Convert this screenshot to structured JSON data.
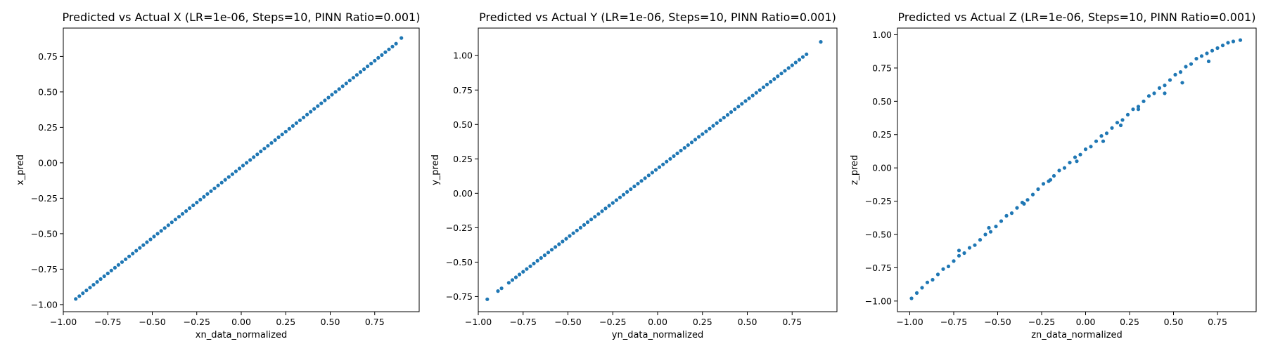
{
  "chart_data": [
    {
      "type": "scatter",
      "title": "Predicted vs Actual X (LR=1e-06, Steps=10, PINN Ratio=0.001)",
      "xlabel": "xn_data_normalized",
      "ylabel": "x_pred",
      "xlim": [
        -1.0,
        1.0
      ],
      "ylim": [
        -1.05,
        0.95
      ],
      "xticks": [
        -1.0,
        -0.75,
        -0.5,
        -0.25,
        0.0,
        0.25,
        0.5,
        0.75
      ],
      "yticks": [
        -1.0,
        -0.75,
        -0.5,
        -0.25,
        0.0,
        0.25,
        0.5,
        0.75
      ],
      "xtick_labels": [
        "−1.00",
        "−0.75",
        "−0.50",
        "−0.25",
        "0.00",
        "0.25",
        "0.50",
        "0.75"
      ],
      "ytick_labels": [
        "−1.00",
        "−0.75",
        "−0.50",
        "−0.25",
        "0.00",
        "0.25",
        "0.50",
        "0.75"
      ],
      "color": "#1f77b4",
      "grid": false,
      "series": [
        {
          "x": [
            -0.93,
            -0.91,
            -0.89,
            -0.87,
            -0.85,
            -0.83,
            -0.81,
            -0.79,
            -0.77,
            -0.75,
            -0.73,
            -0.71,
            -0.69,
            -0.67,
            -0.65,
            -0.63,
            -0.61,
            -0.59,
            -0.57,
            -0.55,
            -0.53,
            -0.51,
            -0.49,
            -0.47,
            -0.45,
            -0.43,
            -0.41,
            -0.39,
            -0.37,
            -0.35,
            -0.33,
            -0.31,
            -0.29,
            -0.27,
            -0.25,
            -0.23,
            -0.21,
            -0.19,
            -0.17,
            -0.15,
            -0.13,
            -0.11,
            -0.09,
            -0.07,
            -0.05,
            -0.03,
            -0.01,
            0.01,
            0.03,
            0.05,
            0.07,
            0.09,
            0.11,
            0.13,
            0.15,
            0.17,
            0.19,
            0.21,
            0.23,
            0.25,
            0.27,
            0.29,
            0.31,
            0.33,
            0.35,
            0.37,
            0.39,
            0.41,
            0.43,
            0.45,
            0.47,
            0.49,
            0.51,
            0.53,
            0.55,
            0.57,
            0.59,
            0.61,
            0.63,
            0.65,
            0.67,
            0.69,
            0.71,
            0.73,
            0.75,
            0.77,
            0.79,
            0.81,
            0.83,
            0.85,
            0.87,
            0.9
          ],
          "y": [
            -0.96,
            -0.94,
            -0.92,
            -0.9,
            -0.88,
            -0.86,
            -0.84,
            -0.82,
            -0.8,
            -0.78,
            -0.76,
            -0.74,
            -0.72,
            -0.7,
            -0.68,
            -0.66,
            -0.64,
            -0.62,
            -0.6,
            -0.58,
            -0.56,
            -0.54,
            -0.52,
            -0.5,
            -0.48,
            -0.46,
            -0.44,
            -0.42,
            -0.4,
            -0.38,
            -0.36,
            -0.34,
            -0.32,
            -0.3,
            -0.28,
            -0.26,
            -0.24,
            -0.22,
            -0.2,
            -0.18,
            -0.16,
            -0.14,
            -0.12,
            -0.1,
            -0.08,
            -0.06,
            -0.04,
            -0.02,
            0.0,
            0.02,
            0.04,
            0.06,
            0.08,
            0.1,
            0.12,
            0.14,
            0.16,
            0.18,
            0.2,
            0.22,
            0.24,
            0.26,
            0.28,
            0.3,
            0.32,
            0.34,
            0.36,
            0.38,
            0.4,
            0.42,
            0.44,
            0.46,
            0.48,
            0.5,
            0.52,
            0.54,
            0.56,
            0.58,
            0.6,
            0.62,
            0.64,
            0.66,
            0.68,
            0.7,
            0.72,
            0.74,
            0.76,
            0.78,
            0.8,
            0.82,
            0.84,
            0.88
          ]
        }
      ]
    },
    {
      "type": "scatter",
      "title": "Predicted vs Actual Y (LR=1e-06, Steps=10, PINN Ratio=0.001)",
      "xlabel": "yn_data_normalized",
      "ylabel": "y_pred",
      "xlim": [
        -1.0,
        1.0
      ],
      "ylim": [
        -0.86,
        1.2
      ],
      "xticks": [
        -1.0,
        -0.75,
        -0.5,
        -0.25,
        0.0,
        0.25,
        0.5,
        0.75
      ],
      "yticks": [
        -0.75,
        -0.5,
        -0.25,
        0.0,
        0.25,
        0.5,
        0.75,
        1.0
      ],
      "xtick_labels": [
        "−1.00",
        "−0.75",
        "−0.50",
        "−0.25",
        "0.00",
        "0.25",
        "0.50",
        "0.75"
      ],
      "ytick_labels": [
        "−0.75",
        "−0.50",
        "−0.25",
        "0.00",
        "0.25",
        "0.50",
        "0.75",
        "1.00"
      ],
      "color": "#1f77b4",
      "grid": false,
      "series": [
        {
          "x": [
            -0.95,
            -0.89,
            -0.87,
            -0.83,
            -0.81,
            -0.79,
            -0.77,
            -0.75,
            -0.73,
            -0.71,
            -0.69,
            -0.67,
            -0.65,
            -0.63,
            -0.61,
            -0.59,
            -0.57,
            -0.55,
            -0.53,
            -0.51,
            -0.49,
            -0.47,
            -0.45,
            -0.43,
            -0.41,
            -0.39,
            -0.37,
            -0.35,
            -0.33,
            -0.31,
            -0.29,
            -0.27,
            -0.25,
            -0.23,
            -0.21,
            -0.19,
            -0.17,
            -0.15,
            -0.13,
            -0.11,
            -0.09,
            -0.07,
            -0.05,
            -0.03,
            -0.01,
            0.01,
            0.03,
            0.05,
            0.07,
            0.09,
            0.11,
            0.13,
            0.15,
            0.17,
            0.19,
            0.21,
            0.23,
            0.25,
            0.27,
            0.29,
            0.31,
            0.33,
            0.35,
            0.37,
            0.39,
            0.41,
            0.43,
            0.45,
            0.47,
            0.49,
            0.51,
            0.53,
            0.55,
            0.57,
            0.59,
            0.61,
            0.63,
            0.65,
            0.67,
            0.69,
            0.71,
            0.73,
            0.75,
            0.77,
            0.79,
            0.81,
            0.83,
            0.91
          ],
          "y": [
            -0.77,
            -0.71,
            -0.69,
            -0.65,
            -0.63,
            -0.61,
            -0.59,
            -0.57,
            -0.55,
            -0.53,
            -0.51,
            -0.49,
            -0.47,
            -0.45,
            -0.43,
            -0.41,
            -0.39,
            -0.37,
            -0.35,
            -0.33,
            -0.31,
            -0.29,
            -0.27,
            -0.25,
            -0.23,
            -0.21,
            -0.19,
            -0.17,
            -0.15,
            -0.13,
            -0.11,
            -0.09,
            -0.07,
            -0.05,
            -0.03,
            -0.01,
            0.01,
            0.03,
            0.05,
            0.07,
            0.09,
            0.11,
            0.13,
            0.15,
            0.17,
            0.19,
            0.21,
            0.23,
            0.25,
            0.27,
            0.29,
            0.31,
            0.33,
            0.35,
            0.37,
            0.39,
            0.41,
            0.43,
            0.45,
            0.47,
            0.49,
            0.51,
            0.53,
            0.55,
            0.57,
            0.59,
            0.61,
            0.63,
            0.65,
            0.67,
            0.69,
            0.71,
            0.73,
            0.75,
            0.77,
            0.79,
            0.81,
            0.83,
            0.85,
            0.87,
            0.89,
            0.91,
            0.93,
            0.95,
            0.97,
            0.99,
            1.01,
            1.1
          ]
        }
      ]
    },
    {
      "type": "scatter",
      "title": "Predicted vs Actual Z (LR=1e-06, Steps=10, PINN Ratio=0.001)",
      "xlabel": "zn_data_normalized",
      "ylabel": "z_pred",
      "xlim": [
        -1.07,
        0.97
      ],
      "ylim": [
        -1.08,
        1.05
      ],
      "xticks": [
        -1.0,
        -0.75,
        -0.5,
        -0.25,
        0.0,
        0.25,
        0.5,
        0.75
      ],
      "yticks": [
        -1.0,
        -0.75,
        -0.5,
        -0.25,
        0.0,
        0.25,
        0.5,
        0.75,
        1.0
      ],
      "xtick_labels": [
        "−1.00",
        "−0.75",
        "−0.50",
        "−0.25",
        "0.00",
        "0.25",
        "0.50",
        "0.75"
      ],
      "ytick_labels": [
        "−1.00",
        "−0.75",
        "−0.50",
        "−0.25",
        "0.00",
        "0.25",
        "0.50",
        "0.75",
        "1.00"
      ],
      "color": "#1f77b4",
      "grid": false,
      "series": [
        {
          "x": [
            -0.99,
            -0.96,
            -0.93,
            -0.9,
            -0.87,
            -0.84,
            -0.81,
            -0.78,
            -0.75,
            -0.72,
            -0.69,
            -0.66,
            -0.63,
            -0.6,
            -0.57,
            -0.54,
            -0.51,
            -0.48,
            -0.45,
            -0.42,
            -0.39,
            -0.36,
            -0.33,
            -0.3,
            -0.27,
            -0.24,
            -0.21,
            -0.18,
            -0.15,
            -0.12,
            -0.09,
            -0.06,
            -0.03,
            0.0,
            0.03,
            0.06,
            0.09,
            0.12,
            0.15,
            0.18,
            0.21,
            0.24,
            0.27,
            0.3,
            0.33,
            0.36,
            0.39,
            0.42,
            0.45,
            0.48,
            0.51,
            0.54,
            0.57,
            0.6,
            0.63,
            0.66,
            0.69,
            0.72,
            0.75,
            0.78,
            0.81,
            0.84,
            0.88,
            -0.72,
            -0.55,
            -0.35,
            -0.2,
            -0.05,
            0.1,
            0.2,
            0.3,
            0.45,
            0.55,
            0.7
          ],
          "y": [
            -0.98,
            -0.94,
            -0.9,
            -0.86,
            -0.84,
            -0.8,
            -0.76,
            -0.74,
            -0.7,
            -0.66,
            -0.64,
            -0.6,
            -0.58,
            -0.54,
            -0.5,
            -0.48,
            -0.44,
            -0.4,
            -0.36,
            -0.34,
            -0.3,
            -0.26,
            -0.24,
            -0.2,
            -0.16,
            -0.12,
            -0.1,
            -0.06,
            -0.02,
            0.0,
            0.04,
            0.08,
            0.1,
            0.14,
            0.16,
            0.2,
            0.24,
            0.26,
            0.3,
            0.34,
            0.36,
            0.4,
            0.44,
            0.46,
            0.5,
            0.54,
            0.56,
            0.6,
            0.62,
            0.66,
            0.7,
            0.72,
            0.76,
            0.78,
            0.82,
            0.84,
            0.86,
            0.88,
            0.9,
            0.92,
            0.94,
            0.95,
            0.96,
            -0.62,
            -0.45,
            -0.27,
            -0.09,
            0.05,
            0.2,
            0.32,
            0.44,
            0.56,
            0.64,
            0.8
          ]
        }
      ]
    }
  ]
}
